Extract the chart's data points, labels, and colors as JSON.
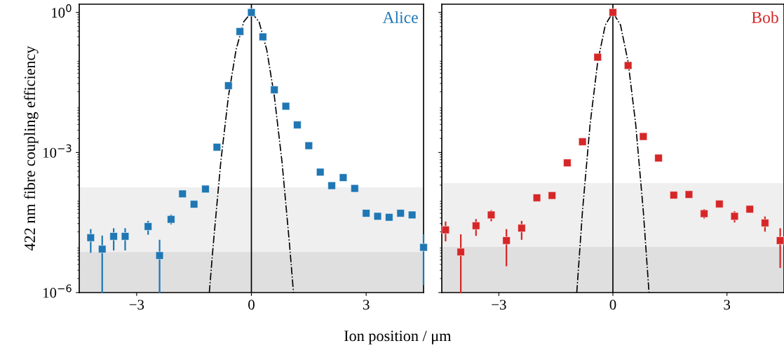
{
  "chart_data": [
    {
      "type": "scatter",
      "ylabel": "422 nm fibre coupling efficiency",
      "xlabel": "Ion position / μm",
      "log": "y",
      "xlim": [
        -4.5,
        4.5
      ],
      "xticks": [
        {
          "value": -3,
          "label": "−3"
        },
        0,
        3
      ],
      "ylim": [
        1e-06,
        1.5
      ],
      "yticks": [
        {
          "value": 1e-06,
          "label": "10$^{−6}$"
        },
        {
          "value": 0.001,
          "label": "10$^{−3}$"
        },
        {
          "value": 1,
          "label": "10$^{0}$"
        }
      ],
      "marker": "square",
      "grid": false,
      "bands": [
        {
          "axis": "y",
          "from": 1e-06,
          "to": 0.00018,
          "color": "#efefef"
        },
        {
          "axis": "y",
          "from": 1e-06,
          "to": 7.4e-06,
          "color": "#dfdfdf"
        }
      ],
      "ref_lines": [
        {
          "axis": "x",
          "value": 0,
          "color": "#000000",
          "line_style": "solid"
        }
      ],
      "series": [
        {
          "name": "Alice",
          "color": "#1f77b4",
          "x": [
            -4.2,
            -3.9,
            -3.6,
            -3.3,
            -2.7,
            -2.4,
            -2.1,
            -1.8,
            -1.5,
            -1.2,
            -0.9,
            -0.6,
            -0.3,
            0,
            0.3,
            0.6,
            0.9,
            1.2,
            1.5,
            1.8,
            2.1,
            2.4,
            2.7,
            3.0,
            3.3,
            3.6,
            3.9,
            4.2,
            4.5
          ],
          "values": [
            1.5e-05,
            8.5e-06,
            1.6e-05,
            1.6e-05,
            2.6e-05,
            6.2e-06,
            3.7e-05,
            0.00013,
            7.8e-05,
            0.000165,
            0.0013,
            0.027,
            0.39,
            1.0,
            0.3,
            0.022,
            0.0098,
            0.0039,
            0.0014,
            0.00038,
            0.000195,
            0.00029,
            0.00017,
            5e-05,
            4.3e-05,
            4.1e-05,
            5e-05,
            4.6e-05,
            9.3e-06
          ],
          "errors": [
            [
              7.4e-06,
              2.2e-05
            ],
            [
              1e-06,
              1.6e-05
            ],
            [
              8.3e-06,
              2.3e-05
            ],
            [
              8.3e-06,
              2.3e-05
            ],
            [
              1.8e-05,
              3.3e-05
            ],
            [
              1e-06,
              1.3e-05
            ],
            [
              3e-05,
              4.5e-05
            ],
            null,
            null,
            null,
            null,
            null,
            null,
            null,
            null,
            null,
            null,
            null,
            null,
            null,
            null,
            null,
            null,
            null,
            null,
            null,
            null,
            null,
            [
              1.5e-06,
              1.7e-05
            ]
          ]
        },
        {
          "color": "#000000",
          "type": "line",
          "line_style": "dashdot",
          "marker": "none",
          "x": [
            -1.1,
            -1.0,
            -0.8,
            -0.6,
            -0.4,
            -0.2,
            0,
            0.2,
            0.4,
            0.6,
            0.8,
            1.0,
            1.1
          ],
          "values": [
            1e-06,
            1e-05,
            0.00063,
            0.016,
            0.16,
            0.63,
            1.0,
            0.63,
            0.16,
            0.016,
            0.00063,
            1e-05,
            1e-06
          ]
        }
      ]
    },
    {
      "type": "scatter",
      "log": "y",
      "xlim": [
        -4.5,
        4.5
      ],
      "xticks": [
        {
          "value": -3,
          "label": "−3"
        },
        0,
        3
      ],
      "ylim": [
        1e-06,
        1.5
      ],
      "yticks": [
        {
          "value": 1e-06,
          "label": null
        },
        {
          "value": 0.001,
          "label": null
        },
        {
          "value": 1,
          "label": null
        }
      ],
      "tick_labels": "x",
      "marker": "square",
      "grid": false,
      "bands": [
        {
          "axis": "y",
          "from": 1e-06,
          "to": 0.00022,
          "color": "#efefef"
        },
        {
          "axis": "y",
          "from": 1e-06,
          "to": 9.5e-06,
          "color": "#dfdfdf"
        }
      ],
      "ref_lines": [
        {
          "axis": "x",
          "value": 0,
          "color": "#000000",
          "line_style": "solid"
        }
      ],
      "series": [
        {
          "name": "Bob",
          "color": "#d62728",
          "x": [
            -4.4,
            -4.0,
            -3.6,
            -3.2,
            -2.8,
            -2.4,
            -2.0,
            -1.6,
            -1.2,
            -0.8,
            -0.4,
            0,
            0.4,
            0.8,
            1.2,
            1.6,
            2.0,
            2.4,
            2.8,
            3.2,
            3.6,
            4.0,
            4.4
          ],
          "values": [
            2.2e-05,
            7.4e-06,
            2.7e-05,
            4.6e-05,
            1.3e-05,
            2.4e-05,
            0.000107,
            0.00012,
            0.0006,
            0.0017,
            0.11,
            1.0,
            0.073,
            0.0022,
            0.00076,
            0.000122,
            0.000126,
            4.9e-05,
            7.9e-05,
            4.3e-05,
            6.1e-05,
            3.1e-05,
            1.3e-05
          ],
          "errors": [
            [
              1.3e-05,
              3.2e-05
            ],
            [
              1e-06,
              1.7e-05
            ],
            [
              1.7e-05,
              3.6e-05
            ],
            [
              3.5e-05,
              5.6e-05
            ],
            [
              3.8e-06,
              2.2e-05
            ],
            [
              1.4e-05,
              3.3e-05
            ],
            null,
            null,
            null,
            null,
            null,
            null,
            null,
            null,
            null,
            null,
            null,
            [
              4e-05,
              5.9e-05
            ],
            null,
            [
              3.3e-05,
              5.3e-05
            ],
            null,
            [
              2.1e-05,
              4.1e-05
            ],
            [
              3.5e-06,
              2.3e-05
            ]
          ]
        },
        {
          "color": "#000000",
          "type": "line",
          "line_style": "dashdot",
          "marker": "none",
          "x": [
            -0.95,
            -0.8,
            -0.6,
            -0.4,
            -0.2,
            0,
            0.2,
            0.4,
            0.6,
            0.8,
            0.95
          ],
          "values": [
            1e-06,
            5.5e-05,
            0.004,
            0.087,
            0.54,
            1.0,
            0.54,
            0.087,
            0.004,
            5.5e-05,
            1e-06
          ]
        }
      ]
    }
  ]
}
